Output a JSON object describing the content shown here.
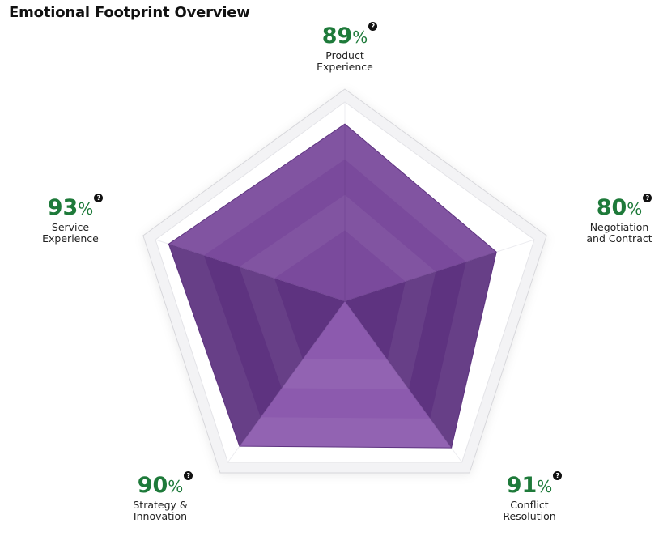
{
  "title": "Emotional Footprint Overview",
  "chart_data": {
    "type": "radar",
    "title": "Emotional Footprint Overview",
    "axes": [
      {
        "label_line1": "Product",
        "label_line2": "Experience",
        "value": 89
      },
      {
        "label_line1": "Negotiation",
        "label_line2": "and Contract",
        "value": 80
      },
      {
        "label_line1": "Conflict",
        "label_line2": "Resolution",
        "value": 91
      },
      {
        "label_line1": "Strategy &",
        "label_line2": "Innovation",
        "value": 90
      },
      {
        "label_line1": "Service",
        "label_line2": "Experience",
        "value": 93
      }
    ],
    "value_suffix": "%",
    "range": [
      0,
      100
    ],
    "help_symbol": "?",
    "colors": {
      "fill": "#7a4a9c",
      "fill_dark": "#5e3380",
      "fill_light": "#8c5aae",
      "frame": "#f3f3f5",
      "frame_stroke": "#d7d7db",
      "value_text": "#1e7a3a"
    }
  }
}
